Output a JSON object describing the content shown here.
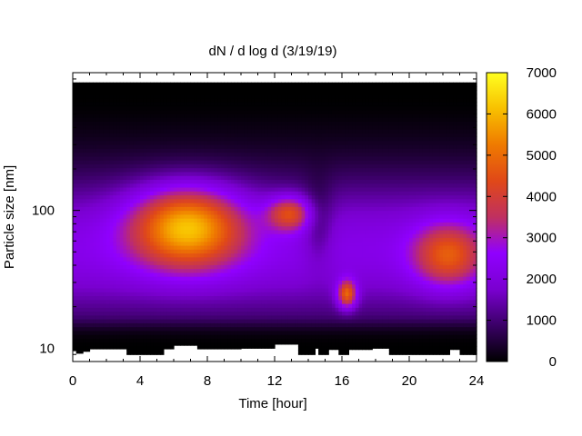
{
  "chart_data": {
    "type": "heatmap",
    "title": "dN / d log d (3/19/19)",
    "xlabel": "Time [hour]",
    "ylabel": "Particle size [nm]",
    "x_range": [
      0,
      24
    ],
    "x_ticks": [
      "0",
      "4",
      "8",
      "12",
      "16",
      "20",
      "24"
    ],
    "y_scale": "log",
    "y_range": [
      8,
      1000
    ],
    "y_ticks": [
      "10",
      "100"
    ],
    "color_range": [
      0,
      7000
    ],
    "colorbar_ticks": [
      "0",
      "1000",
      "2000",
      "3000",
      "4000",
      "5000",
      "6000",
      "7000"
    ],
    "colormap": [
      "#000000",
      "#3a0066",
      "#7a00d0",
      "#9000ff",
      "#c03060",
      "#e04818",
      "#ef7a00",
      "#f8c000",
      "#ffff20"
    ],
    "grid": false,
    "peaks": [
      {
        "time": 6.8,
        "diameter_nm": 75,
        "value": 5400
      },
      {
        "time": 12.9,
        "diameter_nm": 95,
        "value": 3700
      },
      {
        "time": 16.3,
        "diameter_nm": 25,
        "value": 4300
      },
      {
        "time": 22.3,
        "diameter_nm": 48,
        "value": 3900
      }
    ]
  }
}
